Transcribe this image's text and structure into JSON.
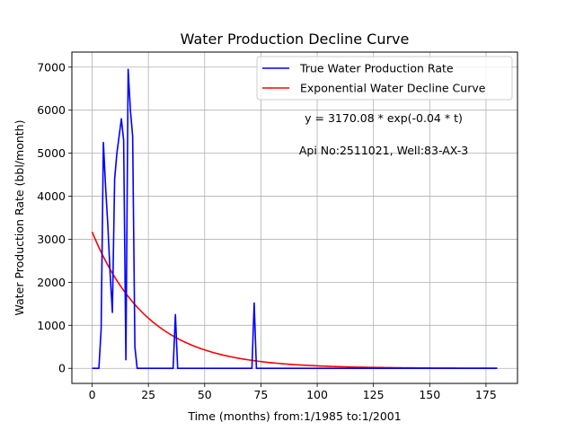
{
  "chart_data": {
    "type": "line",
    "title": "Water Production Decline Curve",
    "xlabel": "Time (months) from:1/1985 to:1/2001",
    "ylabel": "Water Production Rate (bbl/month)",
    "xlim": [
      -9,
      189
    ],
    "ylim": [
      -350,
      7350
    ],
    "xticks": [
      0,
      25,
      50,
      75,
      100,
      125,
      150,
      175
    ],
    "yticks": [
      0,
      1000,
      2000,
      3000,
      4000,
      5000,
      6000,
      7000
    ],
    "grid": true,
    "legend_position": "top-right",
    "annotations": [
      "y = 3170.08 * exp(-0.04 * t)",
      "Api No:2511021, Well:83-AX-3"
    ],
    "series": [
      {
        "name": "True Water Production Rate",
        "color": "#0000ff",
        "x": [
          0,
          1,
          2,
          3,
          4,
          5,
          6,
          7,
          8,
          9,
          10,
          11,
          12,
          13,
          14,
          15,
          16,
          17,
          18,
          19,
          20,
          21,
          22,
          23,
          24,
          25,
          30,
          35,
          36,
          37,
          38,
          40,
          50,
          60,
          70,
          71,
          72,
          73,
          74,
          80,
          90,
          100,
          110,
          120,
          130,
          140,
          150,
          160,
          170,
          180
        ],
        "y": [
          0,
          0,
          0,
          0,
          900,
          5250,
          4200,
          3300,
          2200,
          1300,
          4400,
          5000,
          5400,
          5800,
          5300,
          200,
          6950,
          6000,
          5400,
          500,
          0,
          0,
          0,
          0,
          0,
          0,
          0,
          0,
          0,
          1250,
          0,
          0,
          0,
          0,
          0,
          0,
          1520,
          0,
          0,
          0,
          0,
          0,
          0,
          0,
          0,
          0,
          0,
          0,
          0,
          0
        ]
      },
      {
        "name": "Exponential Water Decline Curve",
        "color": "#ff0000",
        "equation": {
          "a": 3170.08,
          "b": 0.04
        },
        "x_range": [
          0,
          180
        ]
      }
    ]
  }
}
